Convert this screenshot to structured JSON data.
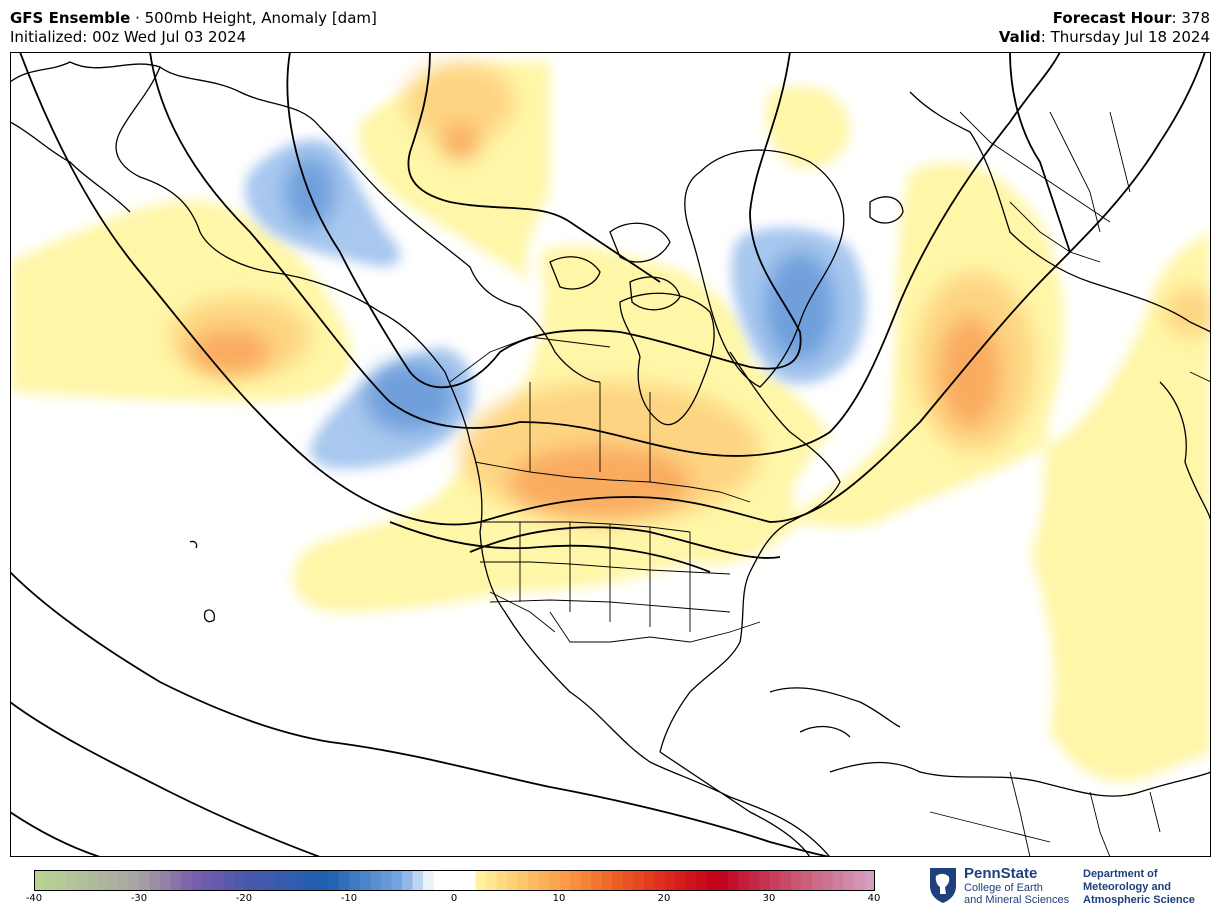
{
  "header": {
    "model": "GFS Ensemble",
    "separator": " · ",
    "field": "500mb Height, Anomaly [dam]",
    "initialized": "Initialized: 00z Wed Jul 03 2024",
    "forecast_hour_label": "Forecast Hour",
    "forecast_hour_value": ": 378",
    "valid_label": "Valid",
    "valid_value": ": Thursday Jul 18 2024"
  },
  "colorbar": {
    "min": -40,
    "max": 40,
    "ticks": [
      "-40",
      "-30",
      "-20",
      "-10",
      "0",
      "10",
      "20",
      "30",
      "40"
    ],
    "colors": {
      "neg40": "#b9d793",
      "neg30": "#a8a3a3",
      "neg25": "#7b5fab",
      "neg20": "#4a58ad",
      "neg12": "#1d5fb0",
      "neg5": "#79a9e3",
      "neg2": "#ffffff",
      "pos2": "#fff6a8",
      "pos5": "#fed67a",
      "pos10": "#fca04c",
      "pos15": "#ee6525",
      "pos20": "#dd2a1c",
      "pos25": "#c1001c",
      "pos32": "#c9506d",
      "pos40": "#d4a2c4"
    }
  },
  "map": {
    "anomaly_colors": {
      "light_pos": "#fff6a8",
      "mid_pos": "#fdd17e",
      "strong_pos": "#f9a45a",
      "light_neg": "#a8c8ef",
      "mid_neg": "#78a8e0",
      "strong_neg": "#5b8ed2"
    }
  },
  "logo": {
    "name": "PennState",
    "college_line1": "College of Earth",
    "college_line2": "and Mineral Sciences",
    "dept_line1": "Department of",
    "dept_line2": "Meteorology and",
    "dept_line3": "Atmospheric Science"
  }
}
